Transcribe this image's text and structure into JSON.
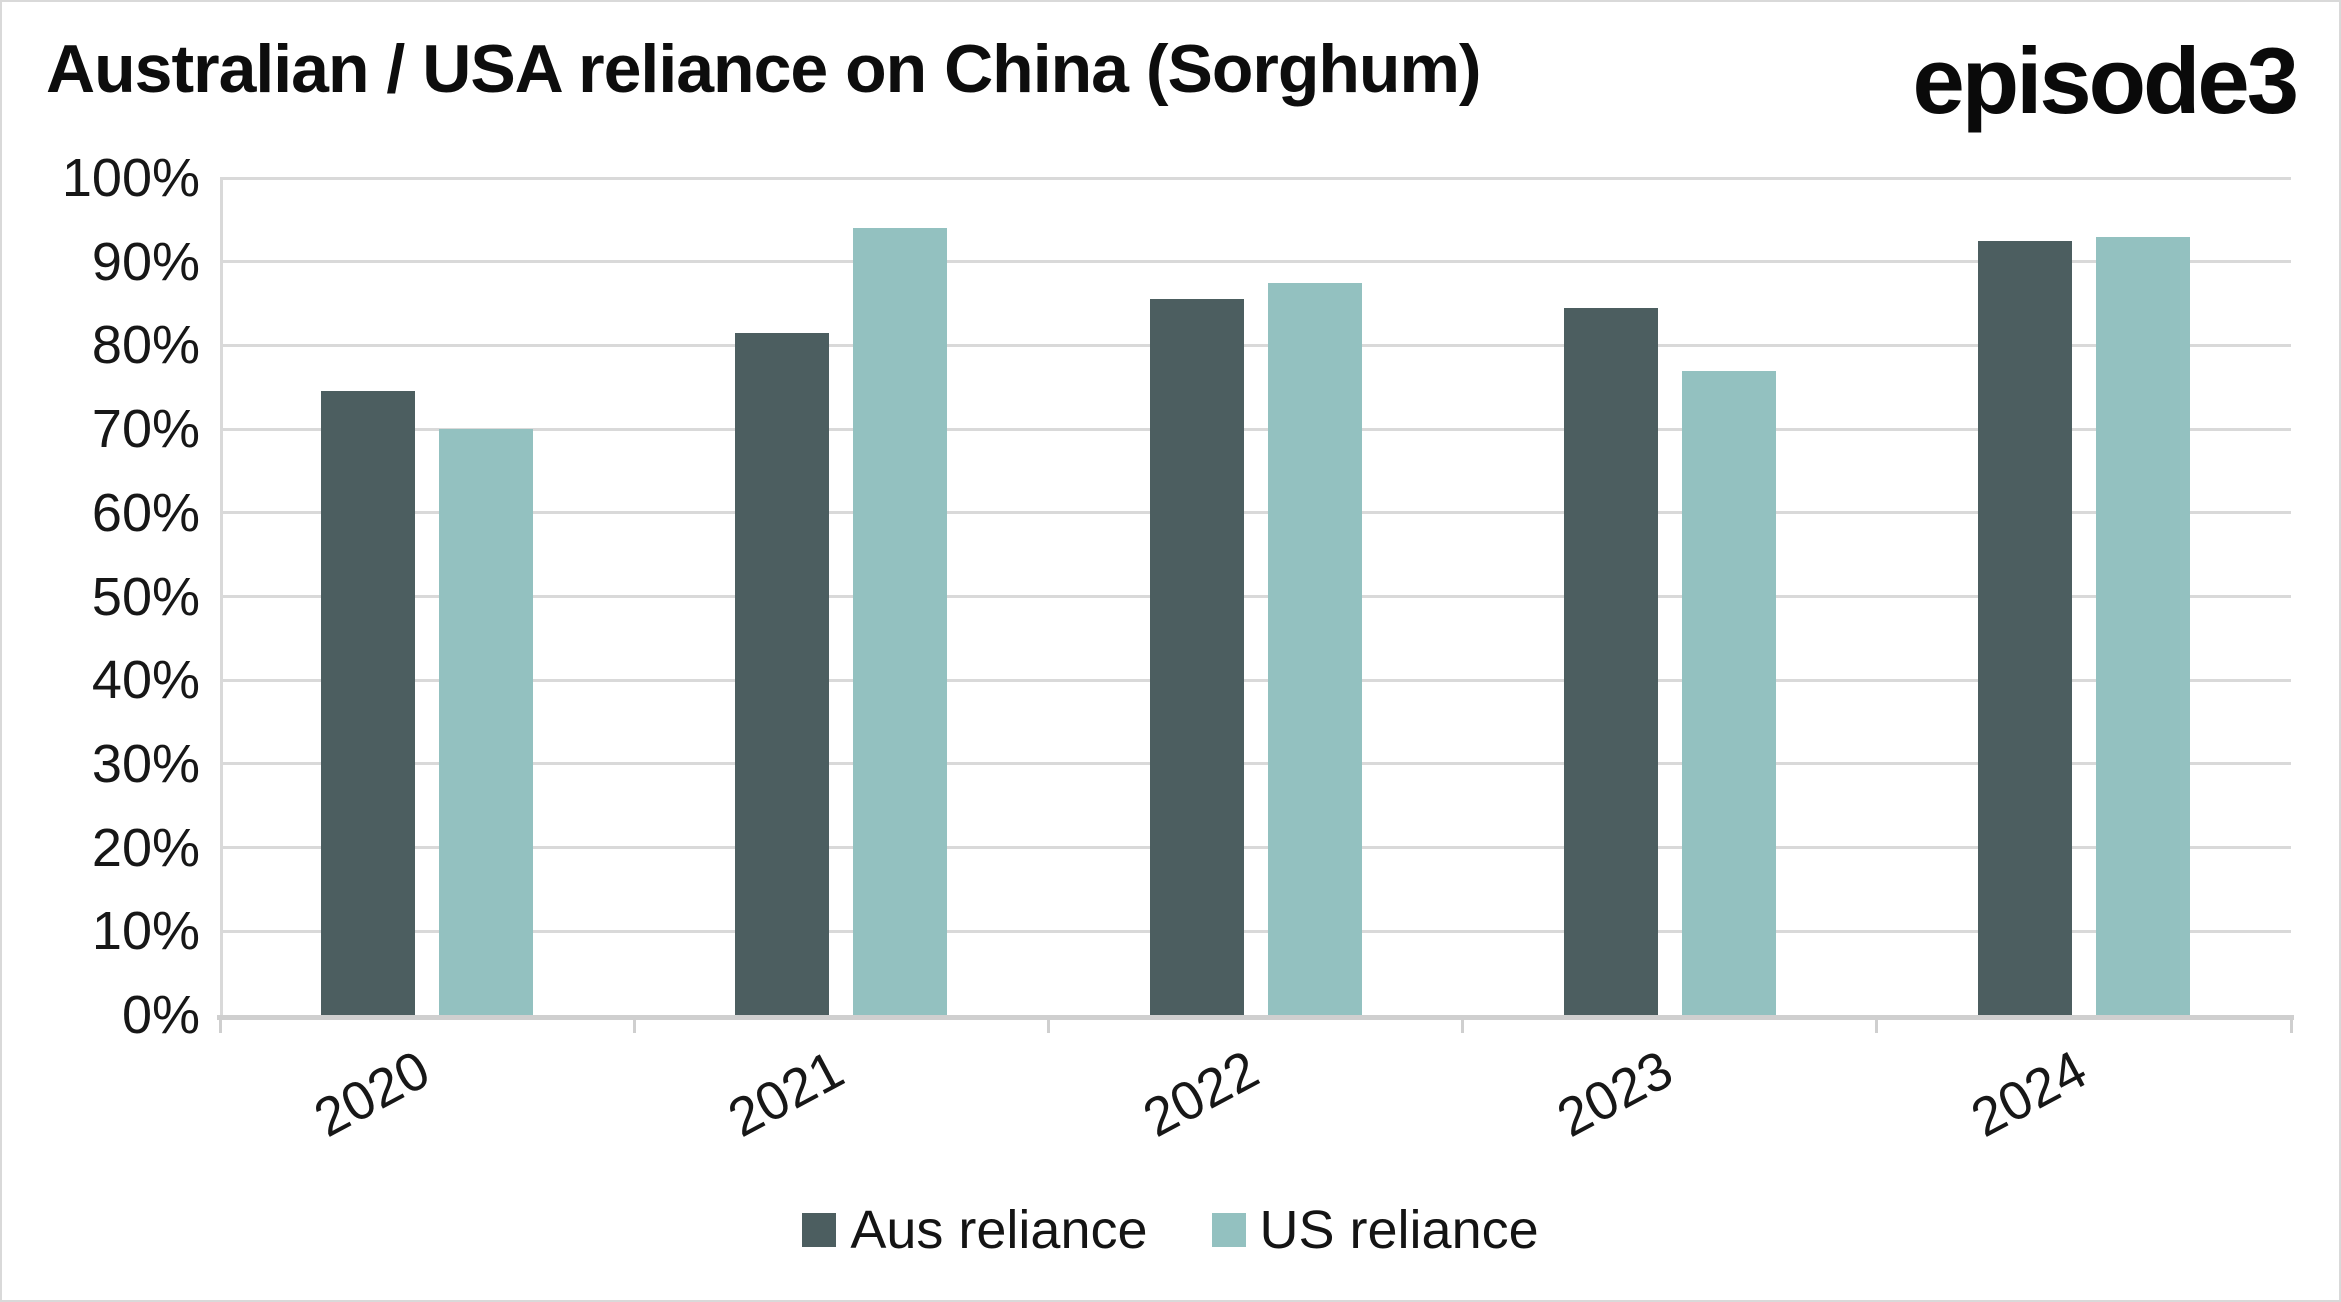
{
  "header": {
    "title": "Australian / USA reliance on China (Sorghum)",
    "logo": "episode3"
  },
  "chart_data": {
    "type": "bar",
    "title": "Australian / USA reliance on China (Sorghum)",
    "categories": [
      "2020",
      "2021",
      "2022",
      "2023",
      "2024"
    ],
    "series": [
      {
        "name": "Aus reliance",
        "color": "#4c5e60",
        "values": [
          74.5,
          81.5,
          85.5,
          84.5,
          92.5
        ]
      },
      {
        "name": "US reliance",
        "color": "#93c1c0",
        "values": [
          70,
          94,
          87.5,
          77,
          93
        ]
      }
    ],
    "y_ticks": [
      {
        "value": 0,
        "label": "0%"
      },
      {
        "value": 10,
        "label": "10%"
      },
      {
        "value": 20,
        "label": "20%"
      },
      {
        "value": 30,
        "label": "30%"
      },
      {
        "value": 40,
        "label": "40%"
      },
      {
        "value": 50,
        "label": "50%"
      },
      {
        "value": 60,
        "label": "60%"
      },
      {
        "value": 70,
        "label": "70%"
      },
      {
        "value": 80,
        "label": "80%"
      },
      {
        "value": 90,
        "label": "90%"
      },
      {
        "value": 100,
        "label": "100%"
      }
    ],
    "ylim": [
      0,
      100
    ],
    "xlabel": "",
    "ylabel": "",
    "grid": "horizontal",
    "legend_position": "bottom",
    "x_labels_rotated": true
  },
  "colors": {
    "background": "#ffffff",
    "border": "#d9d9d9",
    "gridline": "#d9d9d9",
    "axis": "#cfcfcf",
    "text": "#171717"
  }
}
